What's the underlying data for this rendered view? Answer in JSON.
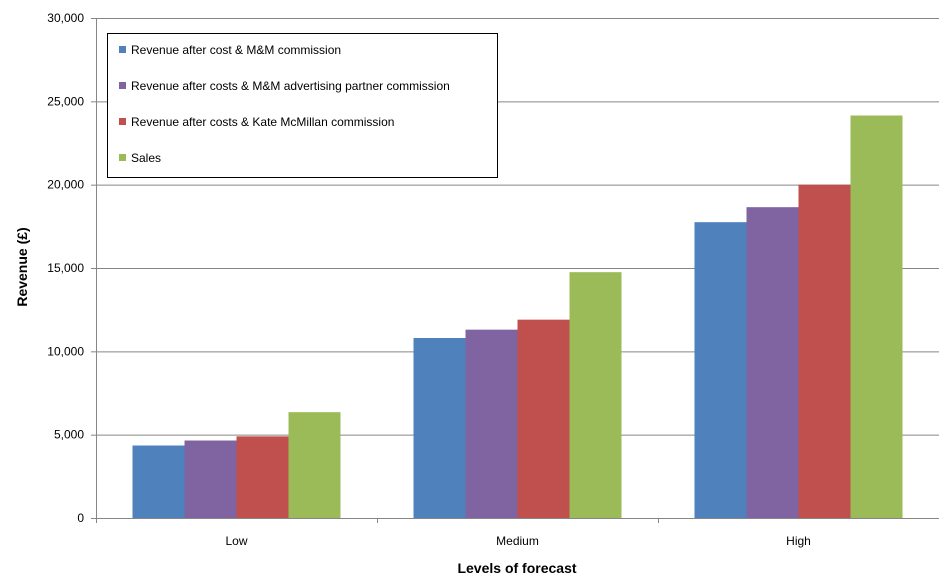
{
  "chart_data": {
    "type": "bar",
    "title": "",
    "xlabel": "Levels of forecast",
    "ylabel": "Revenue (£)",
    "categories": [
      "Low",
      "Medium",
      "High"
    ],
    "ylim": [
      0,
      30000
    ],
    "yticks": [
      0,
      5000,
      10000,
      15000,
      20000,
      25000,
      30000
    ],
    "ytick_labels": [
      "0",
      "5,000",
      "10,000",
      "15,000",
      "20,000",
      "25,000",
      "30,000"
    ],
    "grid": true,
    "legend_position": "top-left",
    "series": [
      {
        "name": "Revenue after cost & M&M commission",
        "color": "#4f81bd",
        "values": [
          4350,
          10800,
          17750
        ]
      },
      {
        "name": "Revenue after costs & M&M advertising partner commission",
        "color": "#8064a2",
        "values": [
          4650,
          11300,
          18650
        ]
      },
      {
        "name": "Revenue after costs & Kate McMillan commission",
        "color": "#c0504d",
        "values": [
          4900,
          11900,
          20000
        ]
      },
      {
        "name": "Sales",
        "color": "#9bbb59",
        "values": [
          6350,
          14750,
          24150
        ]
      }
    ]
  }
}
